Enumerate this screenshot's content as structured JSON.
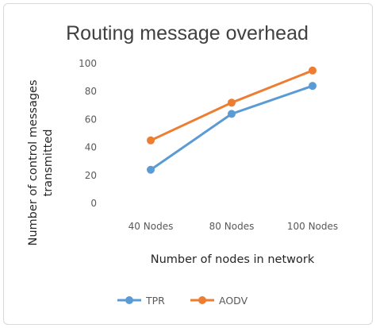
{
  "chart_data": {
    "type": "line",
    "title": "Routing message overhead",
    "xlabel": "Number of nodes in network",
    "ylabel": "Number of control messages transmitted",
    "ylabel_lines": [
      "Number of control messages",
      "transmitted"
    ],
    "categories": [
      "40 Nodes",
      "80 Nodes",
      "100 Nodes"
    ],
    "ylim": [
      0,
      100
    ],
    "yticks": [
      0,
      20,
      40,
      60,
      80,
      100
    ],
    "grid": false,
    "legend_position": "bottom",
    "series": [
      {
        "name": "TPR",
        "color": "#5b9bd5",
        "values": [
          24,
          64,
          84
        ]
      },
      {
        "name": "AODV",
        "color": "#ed7d31",
        "values": [
          45,
          72,
          95
        ]
      }
    ]
  }
}
